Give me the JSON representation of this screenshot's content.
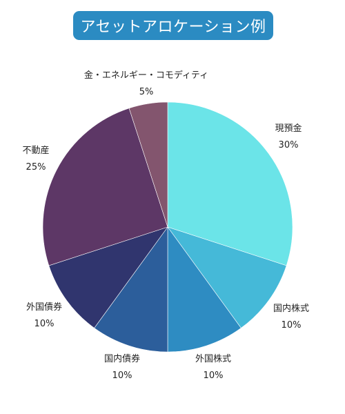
{
  "chart_data": {
    "type": "pie",
    "title": "アセットアロケーション例",
    "slices": [
      {
        "name": "現預金",
        "value": 30,
        "label": "30%",
        "color": "#6BE4E8"
      },
      {
        "name": "国内株式",
        "value": 10,
        "label": "10%",
        "color": "#45B9D8"
      },
      {
        "name": "外国株式",
        "value": 10,
        "label": "10%",
        "color": "#2E8CC2"
      },
      {
        "name": "国内債券",
        "value": 10,
        "label": "10%",
        "color": "#2C5E9B"
      },
      {
        "name": "外国債券",
        "value": 10,
        "label": "10%",
        "color": "#30356E"
      },
      {
        "name": "不動産",
        "value": 25,
        "label": "25%",
        "color": "#5D3766"
      },
      {
        "name": "金・エネルギー・コモディティ",
        "value": 5,
        "label": "5%",
        "color": "#83556E"
      }
    ],
    "start_angle_deg": 0,
    "direction": "clockwise"
  }
}
